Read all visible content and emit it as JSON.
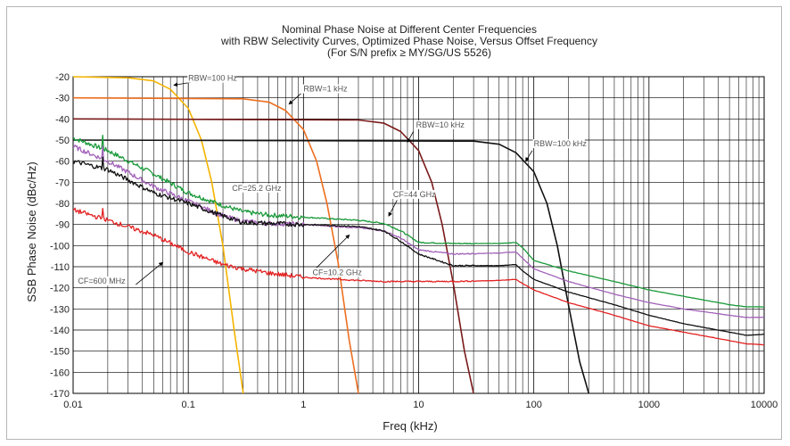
{
  "chart_data": {
    "type": "line",
    "title": [
      "Nominal Phase Noise at Different Center Frequencies",
      "with RBW Selectivity Curves, Optimized Phase Noise, Versus Offset Frequency",
      "(For S/N prefix ≥ MY/SG/US 5526)"
    ],
    "xlabel": "Freq (kHz)",
    "ylabel": "SSB Phase Noise (dBc/Hz)",
    "xscale": "log",
    "xlim": [
      0.01,
      10000
    ],
    "ylim": [
      -170,
      -20
    ],
    "x_ticks": [
      "0.01",
      "0.1",
      "1",
      "10",
      "100",
      "1000",
      "10000"
    ],
    "y_ticks": [
      "-20",
      "-30",
      "-40",
      "-50",
      "-60",
      "-70",
      "-80",
      "-90",
      "-100",
      "-110",
      "-120",
      "-130",
      "-140",
      "-150",
      "-160",
      "-170"
    ],
    "grid": true,
    "legend": "none",
    "series": [
      {
        "name": "RBW=100 Hz",
        "color": "#f5b400",
        "noisy": false,
        "x": [
          0.01,
          0.03,
          0.05,
          0.07,
          0.1,
          0.13,
          0.16,
          0.2,
          0.25,
          0.3
        ],
        "y": [
          -20,
          -20.5,
          -22,
          -26,
          -35,
          -50,
          -70,
          -100,
          -140,
          -170
        ]
      },
      {
        "name": "RBW=1 kHz",
        "color": "#ee6f1f",
        "noisy": false,
        "x": [
          0.01,
          0.3,
          0.5,
          0.7,
          1,
          1.3,
          1.6,
          2,
          2.5,
          3
        ],
        "y": [
          -30,
          -30.5,
          -32,
          -36,
          -45,
          -60,
          -80,
          -108,
          -145,
          -170
        ]
      },
      {
        "name": "RBW=10 kHz",
        "color": "#7a1a1a",
        "noisy": false,
        "x": [
          0.01,
          3,
          5,
          7,
          10,
          13,
          16,
          20,
          25,
          30
        ],
        "y": [
          -40,
          -40.5,
          -42,
          -46,
          -55,
          -70,
          -90,
          -118,
          -150,
          -170
        ]
      },
      {
        "name": "RBW=100 kHz",
        "color": "#111111",
        "noisy": false,
        "x": [
          0.01,
          30,
          50,
          70,
          100,
          130,
          160,
          200,
          250,
          300
        ],
        "y": [
          -50,
          -50.5,
          -52,
          -56,
          -65,
          -80,
          -100,
          -128,
          -155,
          -170
        ]
      },
      {
        "name": "CF=44 GHz",
        "color": "#1a9a3a",
        "noisy": true,
        "x": [
          0.01,
          0.02,
          0.05,
          0.1,
          0.2,
          0.3,
          0.5,
          1,
          2,
          3,
          5,
          7,
          10,
          20,
          50,
          70,
          80,
          100,
          200,
          500,
          1000,
          2000,
          5000,
          7000,
          10000
        ],
        "y": [
          -49,
          -55,
          -66,
          -75,
          -81,
          -84,
          -85.5,
          -86.5,
          -87.5,
          -88,
          -89.5,
          -93,
          -98.5,
          -99,
          -99,
          -98.5,
          -101,
          -107,
          -112,
          -117,
          -121,
          -124,
          -128,
          -129,
          -129
        ]
      },
      {
        "name": "CF=25.2 GHz",
        "color": "#a262b8",
        "noisy": true,
        "x": [
          0.01,
          0.02,
          0.05,
          0.1,
          0.2,
          0.3,
          0.5,
          1,
          2,
          3,
          5,
          7,
          10,
          20,
          50,
          70,
          80,
          100,
          200,
          500,
          1000,
          2000,
          5000,
          7000,
          10000
        ],
        "y": [
          -53,
          -60,
          -72,
          -79,
          -86,
          -88.5,
          -89.5,
          -90,
          -91,
          -91.5,
          -93,
          -96.5,
          -102,
          -104,
          -103.5,
          -103,
          -106,
          -111,
          -117,
          -123,
          -127,
          -130,
          -133,
          -134,
          -134
        ]
      },
      {
        "name": "CF=10.2 GHz",
        "color": "#111111",
        "noisy": true,
        "x": [
          0.01,
          0.02,
          0.05,
          0.1,
          0.2,
          0.3,
          0.5,
          1,
          2,
          3,
          5,
          7,
          10,
          20,
          50,
          70,
          80,
          100,
          200,
          500,
          1000,
          2000,
          5000,
          7000,
          10000
        ],
        "y": [
          -60,
          -64,
          -75,
          -80,
          -86,
          -89,
          -89.5,
          -90,
          -90.5,
          -91,
          -93,
          -98,
          -104,
          -109.5,
          -109.5,
          -109,
          -112,
          -116,
          -122,
          -128,
          -133,
          -137,
          -141,
          -142.5,
          -142
        ]
      },
      {
        "name": "CF=600 MHz",
        "color": "#e32222",
        "noisy": true,
        "x": [
          0.01,
          0.02,
          0.05,
          0.1,
          0.2,
          0.3,
          0.5,
          1,
          2,
          3,
          5,
          10,
          20,
          50,
          70,
          80,
          100,
          200,
          500,
          1000,
          2000,
          5000,
          7000,
          10000
        ],
        "y": [
          -83,
          -88,
          -95,
          -103,
          -109,
          -111,
          -113,
          -115,
          -116,
          -116.5,
          -117,
          -117,
          -117,
          -116.5,
          -116,
          -118,
          -121,
          -127,
          -133,
          -138,
          -141,
          -145,
          -146.5,
          -147
        ]
      }
    ],
    "annotations": [
      {
        "text": "RBW=100 Hz",
        "x": 0.1,
        "y": -22
      },
      {
        "text": "RBW=1 kHz",
        "x": 1,
        "y": -27
      },
      {
        "text": "RBW=10 kHz",
        "x": 9.5,
        "y": -44
      },
      {
        "text": "RBW=100 kHz",
        "x": 100,
        "y": -53
      },
      {
        "text": "CF=25.2 GHz",
        "x": 0.24,
        "y": -74
      },
      {
        "text": "CF=44 GHz",
        "x": 6,
        "y": -77
      },
      {
        "text": "CF=10.2 GHz",
        "x": 1.2,
        "y": -114
      },
      {
        "text": "CF=600 MHz",
        "x": 0.011,
        "y": -118
      }
    ]
  }
}
